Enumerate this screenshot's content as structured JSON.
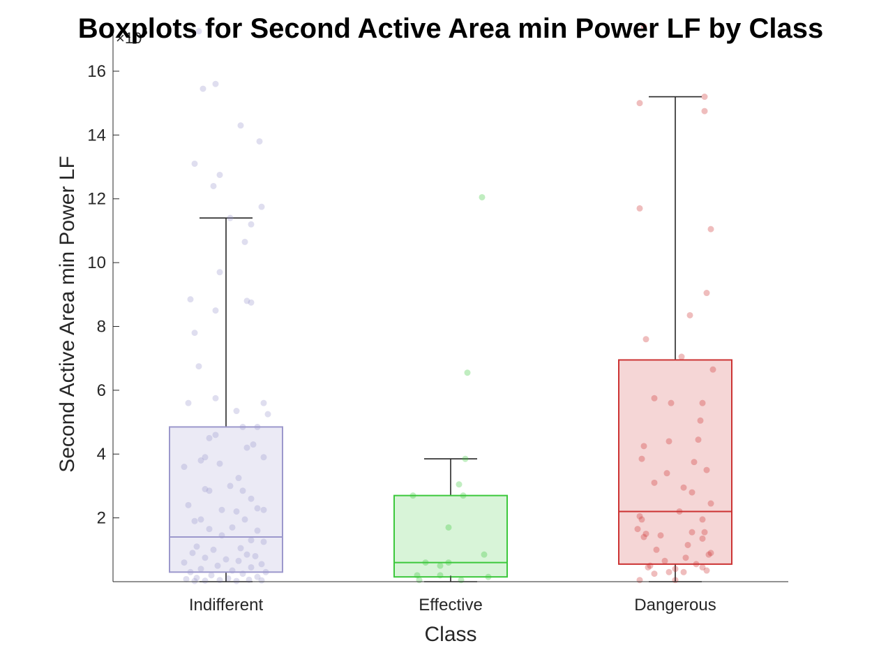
{
  "chart_data": {
    "type": "box",
    "title": "Boxplots for Second Active Area min Power LF by Class",
    "xlabel": "Class",
    "ylabel": "Second Active Area min Power LF",
    "y_exponent_label": "×10",
    "y_exponent_power": "5",
    "y_scale": 100000,
    "ylim": [
      0,
      17.4
    ],
    "y_ticks": [
      2,
      4,
      6,
      8,
      10,
      12,
      14,
      16
    ],
    "grid": false,
    "categories": [
      "Indifferent",
      "Effective",
      "Dangerous"
    ],
    "colors": {
      "Indifferent": "#9C98CC",
      "Effective": "#3CC83C",
      "Dangerous": "#CC3333"
    },
    "boxes": [
      {
        "name": "Indifferent",
        "whisker_low": 0,
        "q1": 0.3,
        "median": 1.4,
        "q3": 4.85,
        "whisker_high": 11.4
      },
      {
        "name": "Effective",
        "whisker_low": 0,
        "q1": 0.15,
        "median": 0.6,
        "q3": 2.7,
        "whisker_high": 3.85
      },
      {
        "name": "Dangerous",
        "whisker_low": 0,
        "q1": 0.55,
        "median": 2.2,
        "q3": 6.95,
        "whisker_high": 15.2
      }
    ],
    "points": [
      [
        [
          -0.13,
          17.25
        ],
        [
          -0.11,
          15.45
        ],
        [
          -0.05,
          15.6
        ],
        [
          -0.15,
          13.1
        ],
        [
          0.07,
          14.3
        ],
        [
          0.16,
          13.8
        ],
        [
          -0.06,
          12.4
        ],
        [
          -0.03,
          12.75
        ],
        [
          -0.03,
          9.7
        ],
        [
          0.17,
          11.75
        ],
        [
          0.12,
          11.2
        ],
        [
          0.02,
          11.4
        ],
        [
          0.09,
          10.65
        ],
        [
          -0.17,
          8.85
        ],
        [
          -0.05,
          8.5
        ],
        [
          0.1,
          8.8
        ],
        [
          0.12,
          8.75
        ],
        [
          -0.15,
          7.8
        ],
        [
          -0.13,
          6.75
        ],
        [
          -0.05,
          5.75
        ],
        [
          -0.18,
          5.6
        ],
        [
          0.05,
          5.35
        ],
        [
          0.2,
          5.25
        ],
        [
          0.18,
          5.6
        ],
        [
          0.15,
          4.85
        ],
        [
          0.08,
          4.85
        ],
        [
          -0.05,
          4.6
        ],
        [
          -0.08,
          4.5
        ],
        [
          0.1,
          4.2
        ],
        [
          0.13,
          4.3
        ],
        [
          0.18,
          3.9
        ],
        [
          -0.1,
          3.9
        ],
        [
          -0.12,
          3.8
        ],
        [
          -0.03,
          3.7
        ],
        [
          -0.2,
          3.6
        ],
        [
          0.06,
          3.25
        ],
        [
          0.02,
          3.0
        ],
        [
          -0.1,
          2.9
        ],
        [
          -0.08,
          2.85
        ],
        [
          0.08,
          2.85
        ],
        [
          0.12,
          2.6
        ],
        [
          0.15,
          2.3
        ],
        [
          0.18,
          2.25
        ],
        [
          -0.18,
          2.4
        ],
        [
          0.05,
          2.2
        ],
        [
          -0.02,
          2.25
        ],
        [
          0.09,
          1.95
        ],
        [
          -0.12,
          1.95
        ],
        [
          -0.15,
          1.9
        ],
        [
          0.03,
          1.7
        ],
        [
          -0.08,
          1.65
        ],
        [
          0.15,
          1.6
        ],
        [
          -0.02,
          1.45
        ],
        [
          0.12,
          1.3
        ],
        [
          0.18,
          1.25
        ],
        [
          -0.14,
          1.1
        ],
        [
          0.07,
          1.05
        ],
        [
          -0.06,
          1.0
        ],
        [
          -0.16,
          0.9
        ],
        [
          0.1,
          0.85
        ],
        [
          0.14,
          0.8
        ],
        [
          -0.1,
          0.75
        ],
        [
          0.0,
          0.7
        ],
        [
          0.06,
          0.65
        ],
        [
          -0.2,
          0.6
        ],
        [
          0.17,
          0.55
        ],
        [
          -0.04,
          0.5
        ],
        [
          0.12,
          0.45
        ],
        [
          -0.12,
          0.4
        ],
        [
          0.03,
          0.35
        ],
        [
          0.19,
          0.3
        ],
        [
          -0.17,
          0.3
        ],
        [
          0.08,
          0.25
        ],
        [
          -0.07,
          0.2
        ],
        [
          0.15,
          0.15
        ],
        [
          -0.14,
          0.12
        ],
        [
          0.01,
          0.1
        ],
        [
          -0.19,
          0.08
        ],
        [
          0.11,
          0.06
        ],
        [
          -0.03,
          0.05
        ],
        [
          0.17,
          0.04
        ],
        [
          -0.1,
          0.03
        ],
        [
          0.05,
          0.02
        ],
        [
          -0.15,
          0.02
        ]
      ],
      [
        [
          0.15,
          12.05
        ],
        [
          0.08,
          6.55
        ],
        [
          0.07,
          3.85
        ],
        [
          0.04,
          3.05
        ],
        [
          -0.18,
          2.7
        ],
        [
          0.06,
          2.7
        ],
        [
          -0.01,
          1.7
        ],
        [
          0.16,
          0.85
        ],
        [
          -0.12,
          0.6
        ],
        [
          -0.01,
          0.6
        ],
        [
          -0.05,
          0.5
        ],
        [
          -0.05,
          0.2
        ],
        [
          -0.16,
          0.2
        ],
        [
          0.18,
          0.15
        ],
        [
          -0.15,
          0.05
        ],
        [
          0.05,
          0.05
        ]
      ],
      [
        [
          -0.15,
          17.4
        ],
        [
          0.14,
          15.2
        ],
        [
          -0.17,
          15.0
        ],
        [
          0.14,
          14.75
        ],
        [
          -0.17,
          11.7
        ],
        [
          0.17,
          11.05
        ],
        [
          0.15,
          9.05
        ],
        [
          0.07,
          8.35
        ],
        [
          -0.14,
          7.6
        ],
        [
          0.03,
          7.05
        ],
        [
          0.18,
          6.65
        ],
        [
          -0.1,
          5.75
        ],
        [
          -0.02,
          5.6
        ],
        [
          0.13,
          5.6
        ],
        [
          0.12,
          5.05
        ],
        [
          -0.03,
          4.4
        ],
        [
          0.11,
          4.45
        ],
        [
          -0.15,
          4.25
        ],
        [
          -0.16,
          3.85
        ],
        [
          0.09,
          3.75
        ],
        [
          0.15,
          3.5
        ],
        [
          -0.04,
          3.4
        ],
        [
          -0.1,
          3.1
        ],
        [
          0.04,
          2.95
        ],
        [
          0.08,
          2.8
        ],
        [
          0.17,
          2.45
        ],
        [
          0.02,
          2.2
        ],
        [
          -0.17,
          2.05
        ],
        [
          -0.16,
          1.95
        ],
        [
          0.13,
          1.95
        ],
        [
          -0.18,
          1.65
        ],
        [
          0.08,
          1.55
        ],
        [
          0.14,
          1.55
        ],
        [
          -0.14,
          1.5
        ],
        [
          -0.07,
          1.45
        ],
        [
          0.13,
          1.35
        ],
        [
          -0.15,
          1.4
        ],
        [
          -0.09,
          1.0
        ],
        [
          0.06,
          1.15
        ],
        [
          0.17,
          0.9
        ],
        [
          0.16,
          0.85
        ],
        [
          0.05,
          0.75
        ],
        [
          -0.05,
          0.65
        ],
        [
          -0.12,
          0.5
        ],
        [
          0.1,
          0.55
        ],
        [
          0.13,
          0.45
        ],
        [
          -0.13,
          0.45
        ],
        [
          0.0,
          0.4
        ],
        [
          0.04,
          0.3
        ],
        [
          -0.03,
          0.3
        ],
        [
          0.15,
          0.35
        ],
        [
          -0.1,
          0.25
        ],
        [
          0.0,
          0.05
        ],
        [
          -0.17,
          0.05
        ]
      ]
    ]
  }
}
